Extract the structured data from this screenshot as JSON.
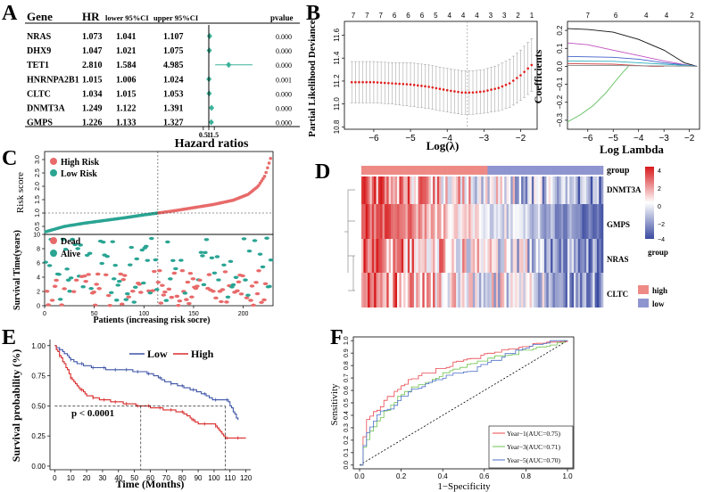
{
  "panels": {
    "A": {
      "letter": "A",
      "headers": {
        "gene": "Gene",
        "hr": "HR",
        "lower": "lower 95%CI",
        "upper": "upper 95%CI",
        "pvalue": "pvalue"
      },
      "rows": [
        {
          "gene": "NRAS",
          "hr": "1.073",
          "lower": "1.041",
          "upper": "1.107",
          "p": "0.000"
        },
        {
          "gene": "DHX9",
          "hr": "1.047",
          "lower": "1.021",
          "upper": "1.075",
          "p": "0.000"
        },
        {
          "gene": "TET1",
          "hr": "2.810",
          "lower": "1.584",
          "upper": "4.985",
          "p": "0.000"
        },
        {
          "gene": "HNRNPA2B1",
          "hr": "1.015",
          "lower": "1.006",
          "upper": "1.024",
          "p": "0.001"
        },
        {
          "gene": "CLTC",
          "hr": "1.034",
          "lower": "1.015",
          "upper": "1.053",
          "p": "0.000"
        },
        {
          "gene": "DNMT3A",
          "hr": "1.249",
          "lower": "1.122",
          "upper": "1.391",
          "p": "0.000"
        },
        {
          "gene": "GMPS",
          "hr": "1.226",
          "lower": "1.133",
          "upper": "1.327",
          "p": "0.000"
        }
      ],
      "axis_ticks": [
        "0.5",
        "1",
        "1.5"
      ],
      "xlabel": "Hazard ratios"
    },
    "B": {
      "letter": "B",
      "left": {
        "top_ticks": [
          "7",
          "7",
          "7",
          "6",
          "6",
          "6",
          "5",
          "4",
          "4",
          "4",
          "3",
          "3",
          "2",
          "1"
        ],
        "xticks": [
          "−6",
          "−5",
          "−4",
          "−3",
          "−2"
        ],
        "yticks": [
          "10.8",
          "11.0",
          "11.2",
          "11.4",
          "11.6"
        ],
        "xlabel": "Log(λ)",
        "ylabel": "Partial Likelihood Deviance"
      },
      "right": {
        "top_ticks": [
          "7",
          "6",
          "4",
          "4",
          "2"
        ],
        "xticks": [
          "−6",
          "−5",
          "−4",
          "−3",
          "−2"
        ],
        "yticks": [
          "−0.3",
          "−0.2",
          "−0.1",
          "0.0",
          "0.1",
          "0.2"
        ],
        "xlabel": "Log Lambda",
        "ylabel": "Coefficients"
      }
    },
    "C": {
      "letter": "C",
      "top": {
        "legend": [
          "High Risk",
          "Low Risk"
        ],
        "ylabel": "Risk score",
        "yticks": [
          "0.5",
          "1.0",
          "1.5",
          "2.0",
          "2.5",
          "3.0"
        ]
      },
      "bottom": {
        "legend": [
          "Dead",
          "Alive"
        ],
        "ylabel": "Survival Time(years)",
        "yticks": [
          "0",
          "2",
          "4",
          "6",
          "8",
          "10"
        ],
        "xticks": [
          "0",
          "50",
          "100",
          "150",
          "200"
        ],
        "xlabel": "Patients (increasing risk socre)"
      }
    },
    "D": {
      "letter": "D",
      "rows": [
        "DNMT3A",
        "GMPS",
        "NRAS",
        "CLTC"
      ],
      "group_label": "group",
      "scale_ticks": [
        "4",
        "2",
        "0",
        "−2",
        "−4"
      ],
      "legend_title": "group",
      "legend_items": [
        "high",
        "low"
      ]
    },
    "E": {
      "letter": "E",
      "legend": [
        "Low",
        "High"
      ],
      "pvalue": "p < 0.0001",
      "ylabel": "Survival probability (%)",
      "xlabel": "Time (Months)",
      "yticks": [
        "0.00",
        "0.25",
        "0.50",
        "0.75",
        "1.00"
      ],
      "xticks": [
        "0",
        "10",
        "20",
        "30",
        "40",
        "50",
        "60",
        "70",
        "80",
        "90",
        "100",
        "110",
        "120"
      ]
    },
    "F": {
      "letter": "F",
      "ylabel": "Sensitivity",
      "xlabel": "1−Specificity",
      "yticks": [
        "0.0",
        "0.1",
        "0.2",
        "0.3",
        "0.4",
        "0.5",
        "0.6",
        "0.7",
        "0.8",
        "0.9",
        "1.0"
      ],
      "xticks": [
        "0.0",
        "0.2",
        "0.4",
        "0.6",
        "0.8",
        "1.0"
      ],
      "legend": [
        "Year−1(AUC=0.75)",
        "Year−3(AUC=0.71)",
        "Year−5(AUC=0.70)"
      ]
    }
  },
  "colors": {
    "forest": "#3bb29a",
    "high": "#e86a6a",
    "low": "#2aa493",
    "heat_high": "#d7191c",
    "heat_low": "#3a4aa0",
    "km_low": "#3e55a8",
    "km_high": "#d92b2b",
    "roc1": "#e8484e",
    "roc3": "#6ec34e",
    "roc5": "#4b6fc7",
    "cv_point": "#e11d1d"
  },
  "chart_data": [
    {
      "type": "scatter",
      "panel": "A",
      "title": "",
      "xlabel": "Hazard ratios",
      "series": [
        {
          "name": "HR",
          "categories": [
            "NRAS",
            "DHX9",
            "TET1",
            "HNRNPA2B1",
            "CLTC",
            "DNMT3A",
            "GMPS"
          ],
          "values": [
            1.073,
            1.047,
            2.81,
            1.015,
            1.034,
            1.249,
            1.226
          ],
          "lower": [
            1.041,
            1.021,
            1.584,
            1.006,
            1.015,
            1.122,
            1.133
          ],
          "upper": [
            1.107,
            1.075,
            4.985,
            1.024,
            1.053,
            1.391,
            1.327
          ]
        }
      ],
      "xlim": [
        0.3,
        5.2
      ]
    },
    {
      "type": "line",
      "panel": "B-left",
      "xlabel": "Log(λ)",
      "ylabel": "Partial Likelihood Deviance",
      "x": [
        -6.6,
        -6.0,
        -5.5,
        -5.0,
        -4.5,
        -4.0,
        -3.6,
        -3.3,
        -3.0,
        -2.6,
        -2.3,
        -2.0,
        -1.7
      ],
      "values": [
        11.19,
        11.19,
        11.18,
        11.17,
        11.15,
        11.12,
        11.1,
        11.1,
        11.11,
        11.14,
        11.18,
        11.25,
        11.34
      ],
      "err": [
        0.18,
        0.18,
        0.18,
        0.19,
        0.19,
        0.19,
        0.19,
        0.19,
        0.19,
        0.2,
        0.21,
        0.22,
        0.23
      ],
      "vline": -3.45,
      "xlim": [
        -6.8,
        -1.55
      ],
      "ylim": [
        10.78,
        11.72
      ]
    },
    {
      "type": "line",
      "panel": "B-right",
      "xlabel": "Log Lambda",
      "ylabel": "Coefficients",
      "xlim": [
        -6.8,
        -1.6
      ],
      "ylim": [
        -0.35,
        0.25
      ],
      "series": [
        {
          "name": "black",
          "color": "#111111",
          "x": [
            -6.8,
            -6,
            -5,
            -4,
            -3,
            -2.2,
            -1.7
          ],
          "values": [
            0.21,
            0.205,
            0.19,
            0.15,
            0.09,
            0.02,
            0.0
          ]
        },
        {
          "name": "magenta",
          "color": "#c050c0",
          "x": [
            -6.8,
            -6,
            -5,
            -4,
            -3,
            -2.2,
            -1.7
          ],
          "values": [
            0.13,
            0.12,
            0.09,
            0.06,
            0.03,
            0.01,
            0.0
          ]
        },
        {
          "name": "blue",
          "color": "#4060c8",
          "x": [
            -6.8,
            -5,
            -4,
            -3,
            -2,
            -1.7
          ],
          "values": [
            0.055,
            0.05,
            0.04,
            0.02,
            0.005,
            0.0
          ]
        },
        {
          "name": "cyan",
          "color": "#30b0c0",
          "x": [
            -6.8,
            -5,
            -4,
            -3,
            -2,
            -1.7
          ],
          "values": [
            0.03,
            0.028,
            0.02,
            0.012,
            0.004,
            0.0
          ]
        },
        {
          "name": "red",
          "color": "#d04040",
          "x": [
            -6.8,
            -5,
            -4.5,
            -4,
            -3.5,
            -3
          ],
          "values": [
            0.015,
            0.012,
            0.008,
            0.004,
            0.0,
            0.0
          ]
        },
        {
          "name": "gray",
          "color": "#888888",
          "x": [
            -6.8,
            -5,
            -4,
            -3,
            -2,
            -1.7
          ],
          "values": [
            0.005,
            0.004,
            0.003,
            0.002,
            0.001,
            0.0
          ]
        },
        {
          "name": "green",
          "color": "#5cc05c",
          "x": [
            -6.8,
            -6.3,
            -5.8,
            -5.3,
            -4.9,
            -4.6,
            -4.4
          ],
          "values": [
            -0.31,
            -0.27,
            -0.22,
            -0.15,
            -0.08,
            -0.03,
            0.0
          ]
        }
      ]
    },
    {
      "type": "scatter",
      "panel": "C-top",
      "ylabel": "Risk score",
      "x": [
        1,
        20,
        40,
        60,
        80,
        100,
        114,
        130,
        150,
        170,
        190,
        205,
        215,
        222,
        228
      ],
      "values": [
        0.3,
        0.5,
        0.62,
        0.72,
        0.82,
        0.93,
        1.0,
        1.08,
        1.2,
        1.32,
        1.48,
        1.7,
        2.0,
        2.4,
        3.1
      ],
      "cutoff_x": 114,
      "cutoff_y": 1.0,
      "xlim": [
        0,
        230
      ],
      "ylim": [
        0.2,
        3.3
      ]
    },
    {
      "type": "scatter",
      "panel": "C-bottom",
      "ylabel": "Survival Time(years)",
      "xlabel": "Patients (increasing risk socre)",
      "xlim": [
        0,
        230
      ],
      "ylim": [
        0,
        10
      ]
    },
    {
      "type": "heatmap",
      "panel": "D",
      "rows": [
        "DNMT3A",
        "GMPS",
        "NRAS",
        "CLTC"
      ],
      "scale": [
        -4,
        4
      ]
    },
    {
      "type": "line",
      "panel": "E",
      "title": "",
      "xlabel": "Time (Months)",
      "ylabel": "Survival probability (%)",
      "series": [
        {
          "name": "Low",
          "x": [
            0,
            5,
            10,
            15,
            20,
            30,
            40,
            50,
            60,
            70,
            80,
            90,
            100,
            108,
            115
          ],
          "values": [
            1.0,
            0.95,
            0.89,
            0.85,
            0.83,
            0.81,
            0.8,
            0.79,
            0.77,
            0.7,
            0.66,
            0.62,
            0.55,
            0.55,
            0.38
          ]
        },
        {
          "name": "High",
          "x": [
            0,
            5,
            10,
            15,
            20,
            30,
            40,
            50,
            60,
            70,
            80,
            90,
            100,
            107,
            120
          ],
          "values": [
            1.0,
            0.87,
            0.74,
            0.65,
            0.59,
            0.55,
            0.53,
            0.51,
            0.49,
            0.47,
            0.45,
            0.35,
            0.35,
            0.23,
            0.23
          ]
        }
      ],
      "median_low_x": 107,
      "median_high_x": 54,
      "xlim": [
        -3,
        123
      ],
      "ylim": [
        -0.03,
        1.05
      ]
    },
    {
      "type": "line",
      "panel": "F",
      "xlabel": "1−Specificity",
      "ylabel": "Sensitivity",
      "xlim": [
        -0.03,
        1.03
      ],
      "ylim": [
        -0.03,
        1.03
      ],
      "series": [
        {
          "name": "Year−1(AUC=0.75)",
          "x": [
            0,
            0.01,
            0.03,
            0.06,
            0.1,
            0.15,
            0.2,
            0.25,
            0.3,
            0.4,
            0.5,
            0.6,
            0.7,
            0.8,
            0.9,
            1.0
          ],
          "values": [
            0,
            0.18,
            0.36,
            0.42,
            0.48,
            0.56,
            0.64,
            0.69,
            0.72,
            0.78,
            0.85,
            0.88,
            0.92,
            0.95,
            0.98,
            1.0
          ]
        },
        {
          "name": "Year−3(AUC=0.71)",
          "x": [
            0,
            0.01,
            0.03,
            0.06,
            0.1,
            0.15,
            0.2,
            0.25,
            0.3,
            0.4,
            0.5,
            0.6,
            0.7,
            0.8,
            0.9,
            1.0
          ],
          "values": [
            0,
            0.1,
            0.2,
            0.3,
            0.4,
            0.48,
            0.56,
            0.62,
            0.66,
            0.73,
            0.78,
            0.84,
            0.88,
            0.92,
            0.97,
            1.0
          ]
        },
        {
          "name": "Year−5(AUC=0.70)",
          "x": [
            0,
            0.01,
            0.03,
            0.06,
            0.1,
            0.15,
            0.2,
            0.25,
            0.3,
            0.4,
            0.5,
            0.6,
            0.7,
            0.8,
            0.9,
            1.0
          ],
          "values": [
            0,
            0.12,
            0.26,
            0.36,
            0.42,
            0.47,
            0.54,
            0.6,
            0.64,
            0.7,
            0.74,
            0.8,
            0.88,
            0.94,
            0.98,
            1.0
          ]
        }
      ]
    }
  ]
}
